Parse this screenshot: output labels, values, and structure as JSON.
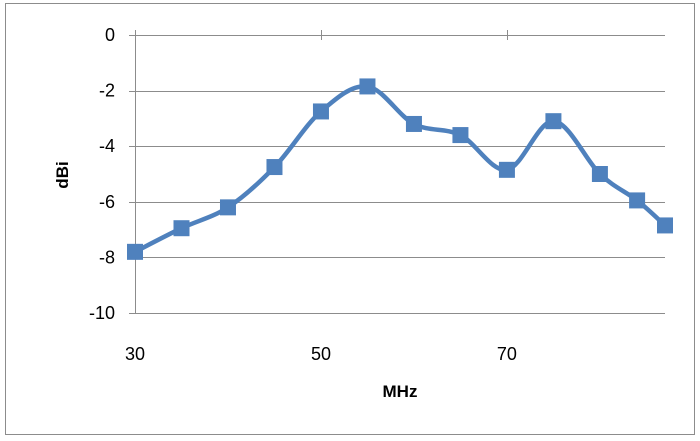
{
  "chart_data": {
    "type": "line",
    "title": "",
    "xlabel": "MHz",
    "ylabel": "dBi",
    "xlim": [
      30,
      87
    ],
    "ylim": [
      -10,
      0
    ],
    "xticks": [
      30,
      50,
      70
    ],
    "yticks": [
      0,
      -2,
      -4,
      -6,
      -8,
      -10
    ],
    "grid": "horizontal",
    "legend": "none",
    "smooth": true,
    "series": [
      {
        "color": "#4f81bd",
        "marker": "square",
        "x": [
          30,
          35,
          40,
          45,
          50,
          55,
          60,
          65,
          70,
          75,
          80,
          84,
          87
        ],
        "y": [
          -7.8,
          -6.95,
          -6.2,
          -4.75,
          -2.75,
          -1.85,
          -3.2,
          -3.6,
          -4.85,
          -3.1,
          -5.0,
          -5.95,
          -6.85
        ]
      }
    ]
  }
}
